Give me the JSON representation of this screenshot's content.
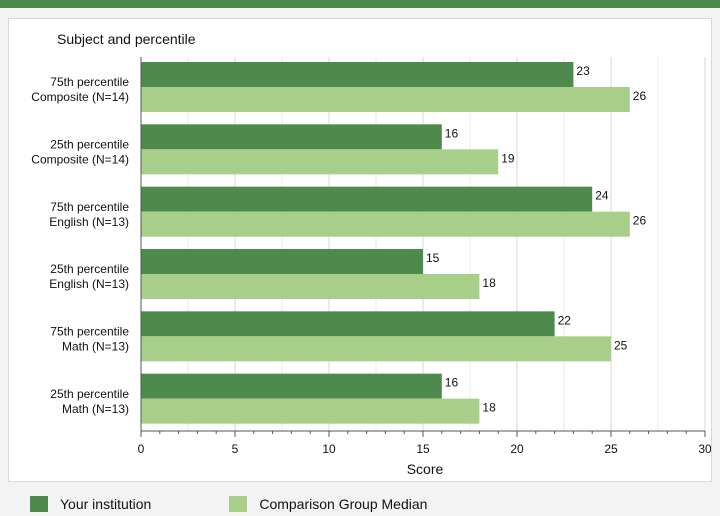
{
  "chart_data": {
    "type": "bar",
    "orientation": "horizontal",
    "ylabel": "Subject and percentile",
    "xlabel": "Score",
    "xlim": [
      0,
      30
    ],
    "xticks": [
      0,
      5,
      10,
      15,
      20,
      25,
      30
    ],
    "grid": true,
    "categories": [
      [
        "75th percentile",
        "Composite (N=14)"
      ],
      [
        "25th percentile",
        "Composite (N=14)"
      ],
      [
        "75th percentile",
        "English (N=13)"
      ],
      [
        "25th percentile",
        "English (N=13)"
      ],
      [
        "75th percentile",
        "Math (N=13)"
      ],
      [
        "25th percentile",
        "Math (N=13)"
      ]
    ],
    "series": [
      {
        "name": "Your institution",
        "color": "#4e8a4b",
        "values": [
          23,
          16,
          24,
          15,
          22,
          16
        ]
      },
      {
        "name": "Comparison Group Median",
        "color": "#a8cf8a",
        "values": [
          26,
          19,
          26,
          18,
          25,
          18
        ]
      }
    ],
    "legend_position": "bottom"
  }
}
